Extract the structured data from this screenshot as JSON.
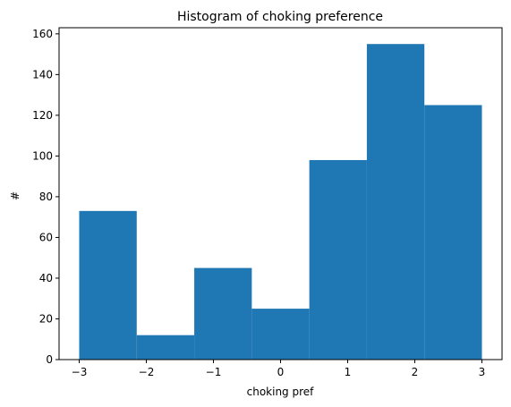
{
  "chart_data": {
    "type": "bar",
    "title": "Histogram of choking preference",
    "xlabel": "choking pref",
    "ylabel": "#",
    "bins": [
      {
        "x0": -3,
        "x1": -2.1429,
        "count": 73
      },
      {
        "x0": -2.1429,
        "x1": -1.2857,
        "count": 12
      },
      {
        "x0": -1.2857,
        "x1": -0.4286,
        "count": 45
      },
      {
        "x0": -0.4286,
        "x1": 0.4286,
        "count": 25
      },
      {
        "x0": 0.4286,
        "x1": 1.2857,
        "count": 98
      },
      {
        "x0": 1.2857,
        "x1": 2.1429,
        "count": 155
      },
      {
        "x0": 2.1429,
        "x1": 3,
        "count": 125
      }
    ],
    "xlim": [
      -3.3,
      3.3
    ],
    "ylim": [
      0,
      163
    ],
    "xticks": [
      -3,
      -2,
      -1,
      0,
      1,
      2,
      3
    ],
    "xtick_labels": [
      "−3",
      "−2",
      "−1",
      "0",
      "1",
      "2",
      "3"
    ],
    "yticks": [
      0,
      20,
      40,
      60,
      80,
      100,
      120,
      140,
      160
    ],
    "ytick_labels": [
      "0",
      "20",
      "40",
      "60",
      "80",
      "100",
      "120",
      "140",
      "160"
    ],
    "grid": false,
    "bar_color": "#1f77b4"
  }
}
